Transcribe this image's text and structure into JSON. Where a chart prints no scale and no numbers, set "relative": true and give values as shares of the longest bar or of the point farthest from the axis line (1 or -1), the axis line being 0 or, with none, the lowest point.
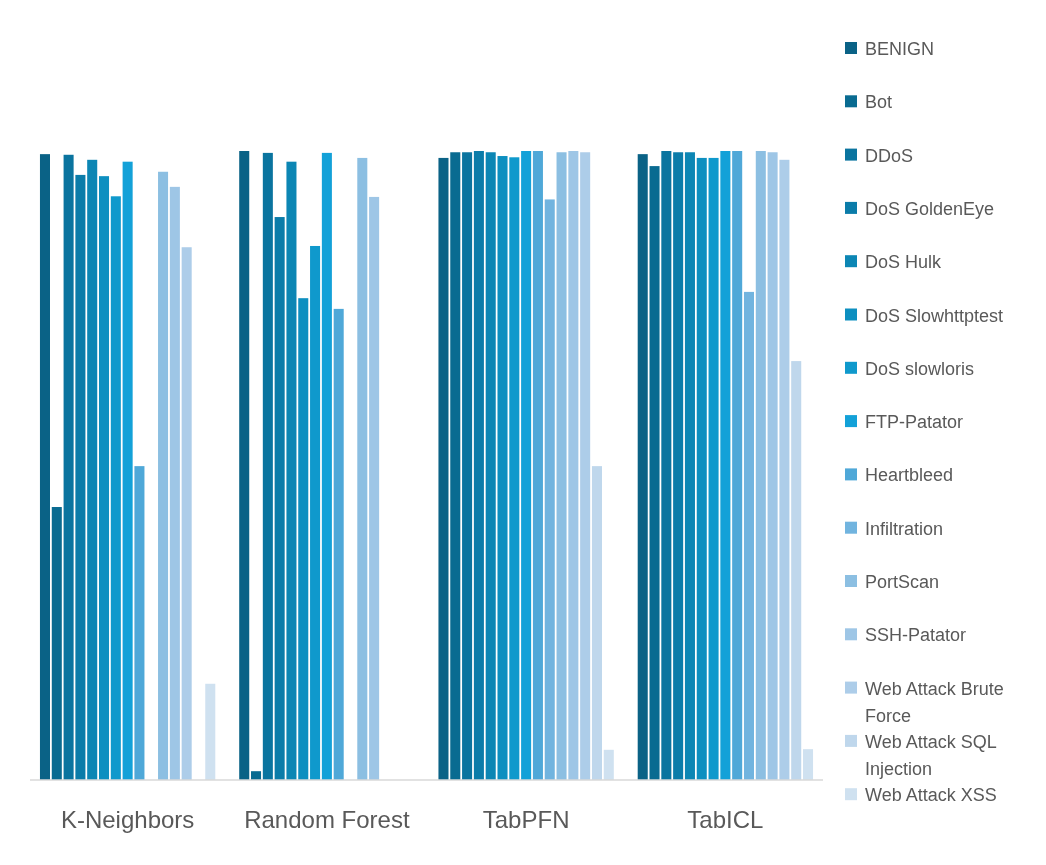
{
  "chart_data": {
    "type": "bar",
    "relative": true,
    "legend": "right",
    "categories": [
      "K-Neighbors",
      "Random Forest",
      "TabPFN",
      "TabICL"
    ],
    "series": [
      {
        "name": "BENIGN",
        "color": "#0a6286",
        "values": [
          0.995,
          1.0,
          0.989,
          0.995
        ]
      },
      {
        "name": "Bot",
        "color": "#096b91",
        "values": [
          0.434,
          0.014,
          0.998,
          0.976
        ]
      },
      {
        "name": "DDoS",
        "color": "#0a749f",
        "values": [
          0.994,
          0.997,
          0.998,
          1.0
        ]
      },
      {
        "name": "DoS GoldenEye",
        "color": "#0b7ca9",
        "values": [
          0.962,
          0.895,
          1.0,
          0.998
        ]
      },
      {
        "name": "DoS Hulk",
        "color": "#0c86b4",
        "values": [
          0.986,
          0.983,
          0.998,
          0.998
        ]
      },
      {
        "name": "DoS Slowhttptest",
        "color": "#0d8fc0",
        "values": [
          0.96,
          0.766,
          0.992,
          0.989
        ]
      },
      {
        "name": "DoS slowloris",
        "color": "#0f99cc",
        "values": [
          0.928,
          0.849,
          0.99,
          0.989
        ]
      },
      {
        "name": "FTP-Patator",
        "color": "#13a1d8",
        "values": [
          0.983,
          0.997,
          1.0,
          1.0
        ]
      },
      {
        "name": "Heartbleed",
        "color": "#4fa8d8",
        "values": [
          0.499,
          0.749,
          1.0,
          1.0
        ]
      },
      {
        "name": "Infiltration",
        "color": "#71b4df",
        "values": [
          0,
          0,
          0.923,
          0.776
        ]
      },
      {
        "name": "PortScan",
        "color": "#8cbfe2",
        "values": [
          0.967,
          0.989,
          0.998,
          1.0
        ]
      },
      {
        "name": "SSH-Patator",
        "color": "#9ec6e6",
        "values": [
          0.943,
          0.927,
          1.0,
          0.998
        ]
      },
      {
        "name": "Web Attack Brute Force",
        "color": "#adcde9",
        "values": [
          0.847,
          0,
          0.998,
          0.986
        ]
      },
      {
        "name": "Web Attack SQL Injection",
        "color": "#bfd7ec",
        "values": [
          0,
          0,
          0.499,
          0.666
        ]
      },
      {
        "name": "Web Attack XSS",
        "color": "#cfe1f0",
        "values": [
          0.153,
          0,
          0.048,
          0.049
        ]
      }
    ]
  }
}
